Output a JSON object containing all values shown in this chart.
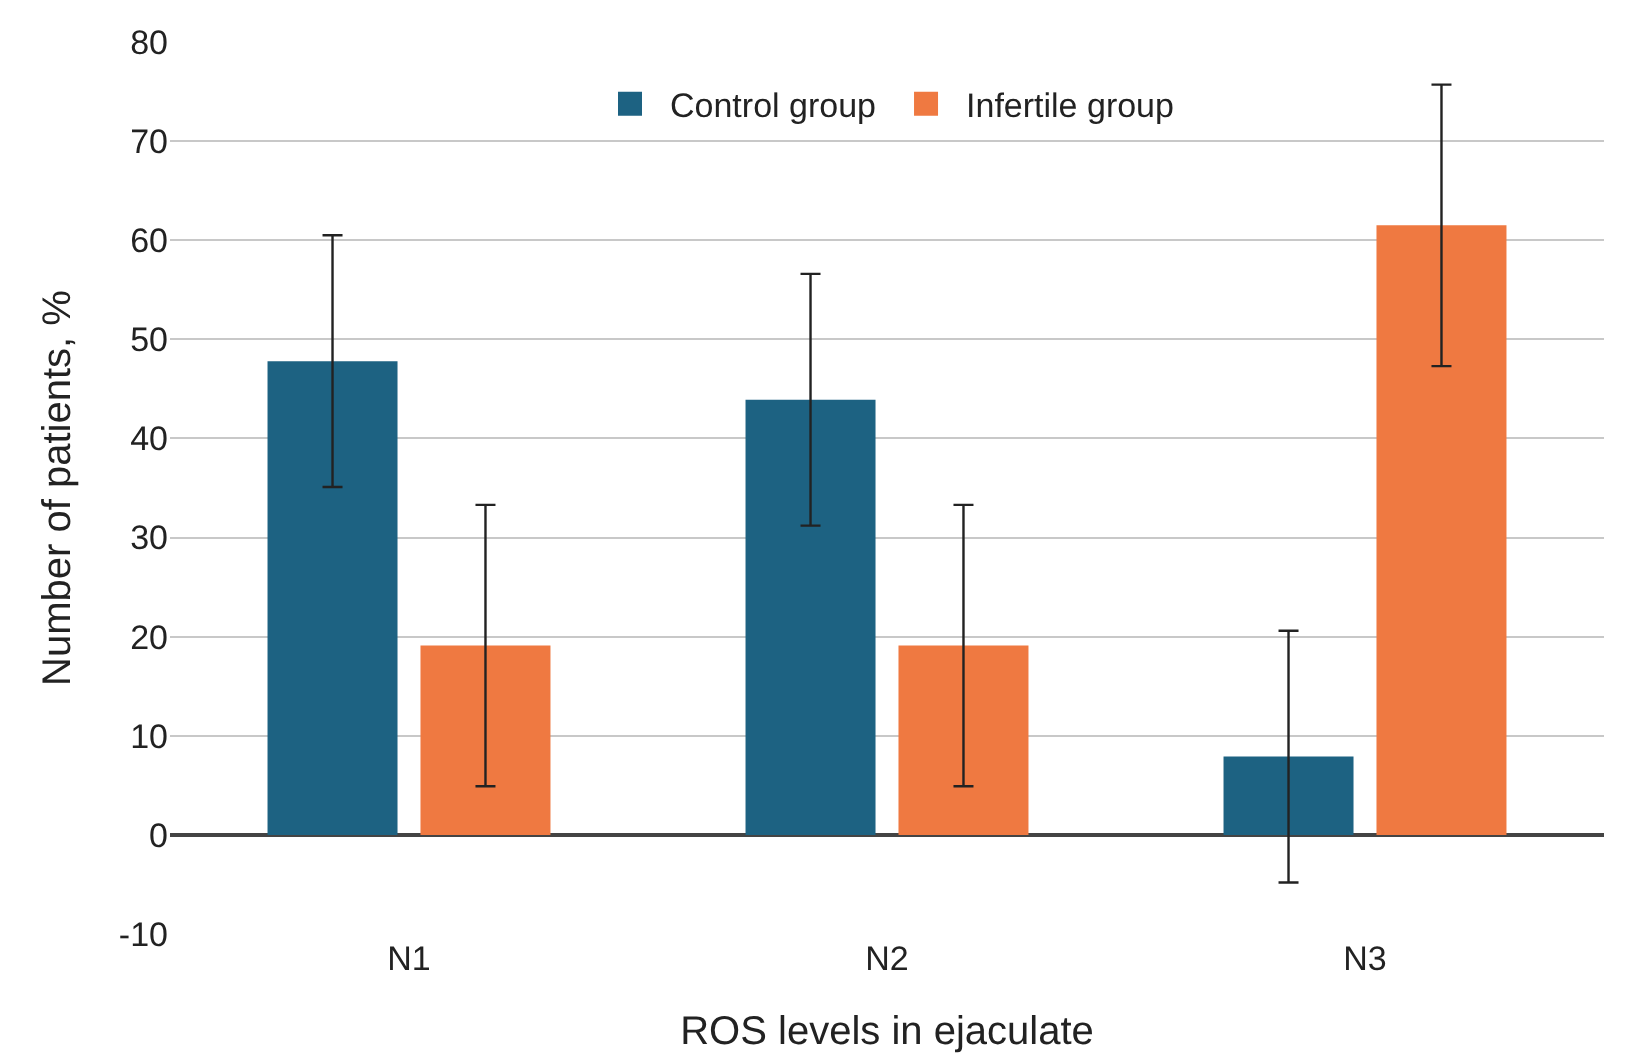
{
  "chart_data": {
    "type": "bar",
    "xlabel": "ROS levels in ejaculate",
    "ylabel": "Number of patients, %",
    "categories": [
      "N1",
      "N2",
      "N3"
    ],
    "series": [
      {
        "name": "Control group",
        "color": "#1d6282",
        "values": [
          47.8,
          43.9,
          7.9
        ],
        "errors": [
          12.7,
          12.7,
          12.7
        ]
      },
      {
        "name": "Infertile group",
        "color": "#ef7941",
        "values": [
          19.1,
          19.1,
          61.5
        ],
        "errors": [
          14.2,
          14.2,
          14.2
        ]
      }
    ],
    "ylim": [
      -10,
      80
    ],
    "yticks": [
      -10,
      0,
      10,
      20,
      30,
      40,
      50,
      60,
      70,
      80
    ],
    "grid": "y",
    "legend": "top"
  }
}
